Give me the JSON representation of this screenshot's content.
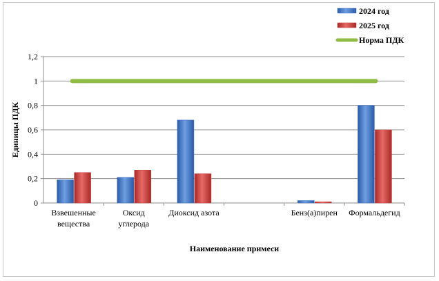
{
  "chart_data": {
    "type": "bar",
    "categories": [
      [
        "Взвешенные",
        "вещества"
      ],
      [
        "Оксид",
        "углерода"
      ],
      [
        "Диоксид азота"
      ],
      [
        ""
      ],
      [
        "Бенз(а)пирен"
      ],
      [
        "Формальдегид"
      ]
    ],
    "series": [
      {
        "name": "2024 год",
        "values": [
          0.19,
          0.21,
          0.68,
          null,
          0.02,
          0.8
        ],
        "color": "#3a73c8"
      },
      {
        "name": "2025 год",
        "values": [
          0.25,
          0.27,
          0.24,
          null,
          0.01,
          0.6
        ],
        "color": "#c83a38"
      }
    ],
    "reference_line": {
      "name": "Норма ПДК",
      "value": 1,
      "color": "#8fbc45"
    },
    "ylim": [
      0,
      1.2
    ],
    "yticks": [
      "0",
      "0,2",
      "0,4",
      "0,6",
      "0,8",
      "1",
      "1,2"
    ],
    "ylabel": "Единицы ПДК",
    "xlabel": "Наименование примеси",
    "legend_position": "top-right",
    "grid": true
  }
}
